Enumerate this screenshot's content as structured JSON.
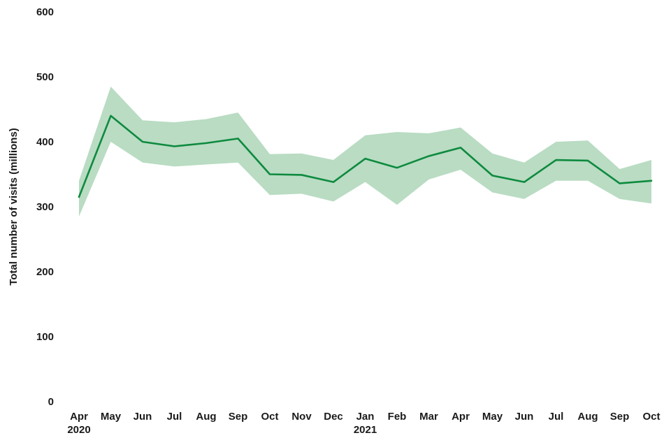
{
  "chart_data": {
    "type": "line",
    "title": "",
    "xlabel": "",
    "ylabel": "Total number of visits (millions)",
    "ylim": [
      0,
      600
    ],
    "yticks": [
      0,
      100,
      200,
      300,
      400,
      500,
      600
    ],
    "grid": false,
    "legend": "none",
    "categories": [
      "Apr",
      "May",
      "Jun",
      "Jul",
      "Aug",
      "Sep",
      "Oct",
      "Nov",
      "Dec",
      "Jan",
      "Feb",
      "Mar",
      "Apr",
      "May",
      "Jun",
      "Jul",
      "Aug",
      "Sep",
      "Oct"
    ],
    "year_labels": [
      {
        "index": 0,
        "text": "2020"
      },
      {
        "index": 9,
        "text": "2021"
      }
    ],
    "series": [
      {
        "name": "Total visits",
        "values": [
          315,
          440,
          400,
          393,
          398,
          405,
          350,
          349,
          338,
          374,
          360,
          378,
          391,
          348,
          338,
          372,
          371,
          336,
          340
        ]
      }
    ],
    "confidence_band": {
      "upper": [
        340,
        485,
        433,
        430,
        435,
        445,
        381,
        382,
        372,
        410,
        415,
        413,
        422,
        382,
        368,
        400,
        402,
        358,
        372
      ],
      "lower": [
        285,
        400,
        368,
        362,
        365,
        368,
        318,
        320,
        308,
        338,
        303,
        342,
        357,
        322,
        312,
        340,
        340,
        312,
        305
      ]
    },
    "colors": {
      "line": "#0e8a3e",
      "band": "#b9dcc3",
      "text": "#1a1a1a",
      "background": "#ffffff"
    }
  }
}
